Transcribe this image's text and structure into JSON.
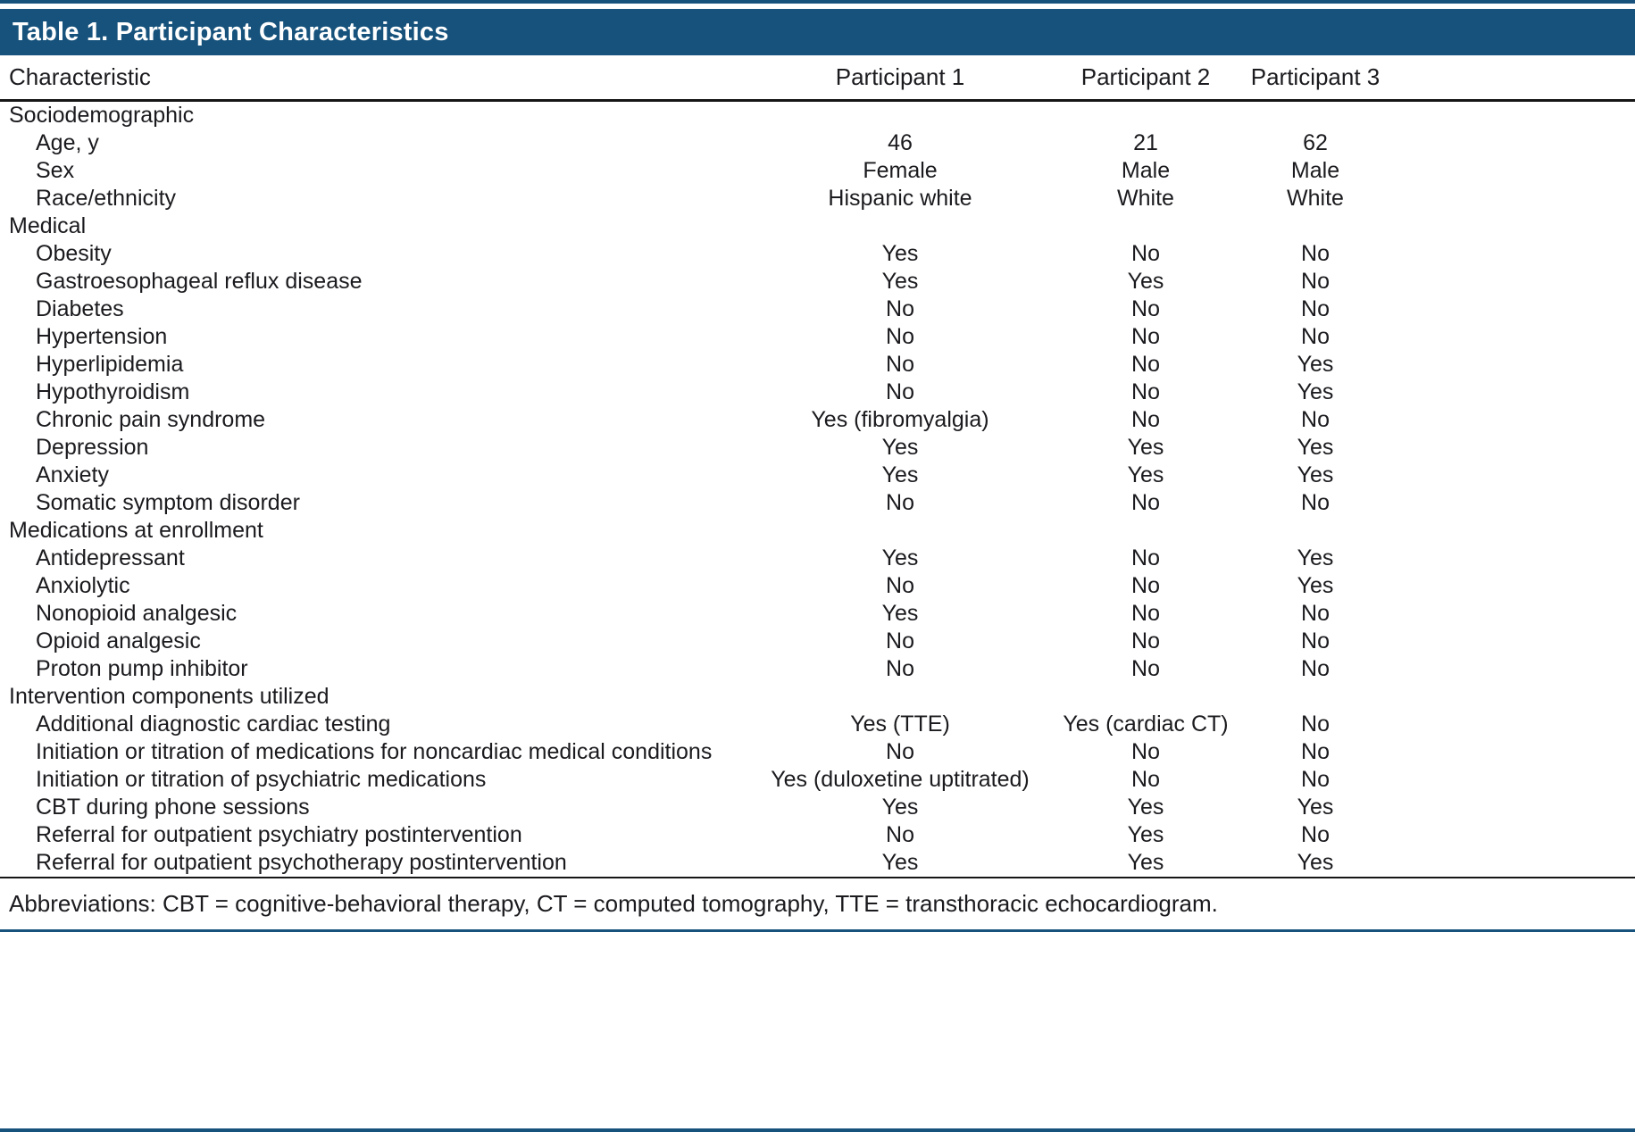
{
  "colors": {
    "accent_blue": "#16527c",
    "text": "#1b1b1f",
    "rule_black": "#161616"
  },
  "table": {
    "title": "Table 1. Participant Characteristics",
    "columns": [
      "Characteristic",
      "Participant 1",
      "Participant 2",
      "Participant 3"
    ],
    "sections": [
      {
        "header": "Sociodemographic",
        "rows": [
          {
            "label": "Age, y",
            "values": [
              "46",
              "21",
              "62"
            ]
          },
          {
            "label": "Sex",
            "values": [
              "Female",
              "Male",
              "Male"
            ]
          },
          {
            "label": "Race/ethnicity",
            "values": [
              "Hispanic white",
              "White",
              "White"
            ]
          }
        ]
      },
      {
        "header": "Medical",
        "rows": [
          {
            "label": "Obesity",
            "values": [
              "Yes",
              "No",
              "No"
            ]
          },
          {
            "label": "Gastroesophageal reflux disease",
            "values": [
              "Yes",
              "Yes",
              "No"
            ]
          },
          {
            "label": "Diabetes",
            "values": [
              "No",
              "No",
              "No"
            ]
          },
          {
            "label": "Hypertension",
            "values": [
              "No",
              "No",
              "No"
            ]
          },
          {
            "label": "Hyperlipidemia",
            "values": [
              "No",
              "No",
              "Yes"
            ]
          },
          {
            "label": "Hypothyroidism",
            "values": [
              "No",
              "No",
              "Yes"
            ]
          },
          {
            "label": "Chronic pain syndrome",
            "values": [
              "Yes (fibromyalgia)",
              "No",
              "No"
            ]
          },
          {
            "label": "Depression",
            "values": [
              "Yes",
              "Yes",
              "Yes"
            ]
          },
          {
            "label": "Anxiety",
            "values": [
              "Yes",
              "Yes",
              "Yes"
            ]
          },
          {
            "label": "Somatic symptom disorder",
            "values": [
              "No",
              "No",
              "No"
            ]
          }
        ]
      },
      {
        "header": "Medications at enrollment",
        "rows": [
          {
            "label": "Antidepressant",
            "values": [
              "Yes",
              "No",
              "Yes"
            ]
          },
          {
            "label": "Anxiolytic",
            "values": [
              "No",
              "No",
              "Yes"
            ]
          },
          {
            "label": "Nonopioid analgesic",
            "values": [
              "Yes",
              "No",
              "No"
            ]
          },
          {
            "label": "Opioid analgesic",
            "values": [
              "No",
              "No",
              "No"
            ]
          },
          {
            "label": "Proton pump inhibitor",
            "values": [
              "No",
              "No",
              "No"
            ]
          }
        ]
      },
      {
        "header": "Intervention components utilized",
        "rows": [
          {
            "label": "Additional diagnostic cardiac testing",
            "values": [
              "Yes (TTE)",
              "Yes (cardiac CT)",
              "No"
            ]
          },
          {
            "label": "Initiation or titration of medications for noncardiac medical conditions",
            "values": [
              "No",
              "No",
              "No"
            ]
          },
          {
            "label": "Initiation or titration of psychiatric medications",
            "values": [
              "Yes (duloxetine uptitrated)",
              "No",
              "No"
            ]
          },
          {
            "label": "CBT during phone sessions",
            "values": [
              "Yes",
              "Yes",
              "Yes"
            ]
          },
          {
            "label": "Referral for outpatient psychiatry postintervention",
            "values": [
              "No",
              "Yes",
              "No"
            ]
          },
          {
            "label": "Referral for outpatient psychotherapy postintervention",
            "values": [
              "Yes",
              "Yes",
              "Yes"
            ]
          }
        ]
      }
    ],
    "footnote": "Abbreviations: CBT = cognitive-behavioral therapy, CT = computed tomography, TTE = transthoracic echocardiogram."
  }
}
